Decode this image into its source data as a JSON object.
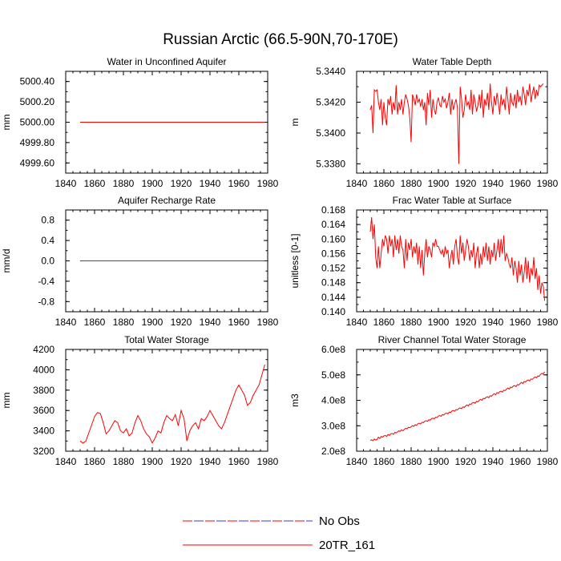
{
  "figure": {
    "title": "Russian Arctic (66.5-90N,70-170E)"
  },
  "legend": [
    {
      "label": "No Obs",
      "color": "#ff0000",
      "color2": "#3333ff",
      "style": "dashed"
    },
    {
      "label": "20TR_161",
      "color": "#ff0000",
      "style": "solid"
    }
  ],
  "chart_data": [
    {
      "type": "line",
      "title": "Water in Unconfined Aquifer",
      "ylabel": "mm",
      "xlim": [
        1840,
        1980
      ],
      "ylim": [
        4999.5,
        5000.5
      ],
      "xticks": [
        1840,
        1860,
        1880,
        1900,
        1920,
        1940,
        1960,
        1980
      ],
      "xtick_labels": [
        "1840",
        "1860",
        "1880",
        "1900",
        "1920",
        "1940",
        "1960",
        "1980"
      ],
      "yticks": [
        4999.6,
        4999.8,
        5000.0,
        5000.2,
        5000.4
      ],
      "ytick_labels": [
        "4999.60",
        "4999.80",
        "5000.00",
        "5000.20",
        "5000.40"
      ],
      "series": [
        {
          "name": "20TR_161",
          "color": "#ff0000",
          "x": [
            1850,
            1978
          ],
          "y": [
            5000.0,
            5000.0
          ]
        }
      ]
    },
    {
      "type": "line",
      "title": "Water Table Depth",
      "ylabel": "m",
      "xlim": [
        1840,
        1980
      ],
      "ylim": [
        5.3374,
        5.344
      ],
      "xticks": [
        1840,
        1860,
        1880,
        1900,
        1920,
        1940,
        1960,
        1980
      ],
      "xtick_labels": [
        "1840",
        "1860",
        "1880",
        "1900",
        "1920",
        "1940",
        "1960",
        "1980"
      ],
      "yticks": [
        5.338,
        5.34,
        5.342,
        5.344
      ],
      "ytick_labels": [
        "5.3380",
        "5.3400",
        "5.3420",
        "5.3440"
      ],
      "series": [
        {
          "name": "20TR_161",
          "color": "#ff0000",
          "x_start": 1850,
          "x_step": 1,
          "y": [
            5.3415,
            5.3418,
            5.34,
            5.3428,
            5.3427,
            5.3428,
            5.342,
            5.3415,
            5.3422,
            5.3405,
            5.342,
            5.341,
            5.3405,
            5.3422,
            5.3418,
            5.3424,
            5.3412,
            5.342,
            5.3415,
            5.3431,
            5.3412,
            5.342,
            5.3415,
            5.3422,
            5.3412,
            5.342,
            5.3425,
            5.3422,
            5.3418,
            5.341,
            5.3394,
            5.3425,
            5.3422,
            5.3418,
            5.3425,
            5.342,
            5.3422,
            5.3417,
            5.3422,
            5.3415,
            5.342,
            5.3405,
            5.3426,
            5.3418,
            5.3428,
            5.341,
            5.3422,
            5.3415,
            5.3412,
            5.342,
            5.3423,
            5.3418,
            5.3417,
            5.3424,
            5.342,
            5.3422,
            5.3416,
            5.342,
            5.3426,
            5.3412,
            5.3422,
            5.3415,
            5.3419,
            5.3422,
            5.3416,
            5.338,
            5.343,
            5.3422,
            5.341,
            5.3415,
            5.3425,
            5.3418,
            5.342,
            5.3415,
            5.3428,
            5.3412,
            5.3425,
            5.342,
            5.3414,
            5.3418,
            5.3425,
            5.3416,
            5.3428,
            5.341,
            5.3422,
            5.3418,
            5.3426,
            5.3415,
            5.3432,
            5.342,
            5.3412,
            5.3424,
            5.3418,
            5.3426,
            5.342,
            5.3412,
            5.3425,
            5.3418,
            5.3422,
            5.3415,
            5.343,
            5.3422,
            5.3412,
            5.3426,
            5.342,
            5.3418,
            5.3425,
            5.3416,
            5.3428,
            5.342,
            5.3424,
            5.3418,
            5.343,
            5.3425,
            5.3418,
            5.3428,
            5.3424,
            5.3432,
            5.342,
            5.3426,
            5.343,
            5.3422,
            5.3428,
            5.3424,
            5.3431,
            5.343,
            5.3431,
            5.3432
          ]
        }
      ]
    },
    {
      "type": "line",
      "title": "Aquifer Recharge Rate",
      "ylabel": "mm/d",
      "xlim": [
        1840,
        1980
      ],
      "ylim": [
        -1.0,
        1.0
      ],
      "xticks": [
        1840,
        1860,
        1880,
        1900,
        1920,
        1940,
        1960,
        1980
      ],
      "xtick_labels": [
        "1840",
        "1860",
        "1880",
        "1900",
        "1920",
        "1940",
        "1960",
        "1980"
      ],
      "yticks": [
        -0.8,
        -0.4,
        0.0,
        0.4,
        0.8
      ],
      "ytick_labels": [
        "-0.8",
        "-0.4",
        "0.0",
        "0.4",
        "0.8"
      ],
      "series": [
        {
          "name": "20TR_161",
          "color": "#ff0000",
          "x": [
            1850,
            1978
          ],
          "y": [
            0.0,
            0.0
          ]
        }
      ]
    },
    {
      "type": "line",
      "title": "Frac Water Table at Surface",
      "ylabel": "unitless [0-1]",
      "xlim": [
        1840,
        1980
      ],
      "ylim": [
        0.14,
        0.168
      ],
      "xticks": [
        1840,
        1860,
        1880,
        1900,
        1920,
        1940,
        1960,
        1980
      ],
      "xtick_labels": [
        "1840",
        "1860",
        "1880",
        "1900",
        "1920",
        "1940",
        "1960",
        "1980"
      ],
      "yticks": [
        0.14,
        0.144,
        0.148,
        0.152,
        0.156,
        0.16,
        0.164,
        0.168
      ],
      "ytick_labels": [
        "0.140",
        "0.144",
        "0.148",
        "0.152",
        "0.156",
        "0.160",
        "0.164",
        "0.168"
      ],
      "series": [
        {
          "name": "20TR_161",
          "color": "#ff0000",
          "x_start": 1850,
          "x_step": 1,
          "y": [
            0.162,
            0.166,
            0.16,
            0.164,
            0.155,
            0.152,
            0.158,
            0.152,
            0.156,
            0.16,
            0.158,
            0.161,
            0.16,
            0.156,
            0.161,
            0.158,
            0.16,
            0.155,
            0.161,
            0.157,
            0.16,
            0.156,
            0.161,
            0.158,
            0.157,
            0.152,
            0.16,
            0.154,
            0.159,
            0.157,
            0.16,
            0.155,
            0.158,
            0.156,
            0.159,
            0.153,
            0.158,
            0.152,
            0.157,
            0.15,
            0.156,
            0.16,
            0.155,
            0.158,
            0.157,
            0.155,
            0.159,
            0.158,
            0.16,
            0.158,
            0.158,
            0.157,
            0.156,
            0.157,
            0.155,
            0.158,
            0.156,
            0.157,
            0.152,
            0.155,
            0.157,
            0.153,
            0.158,
            0.16,
            0.155,
            0.153,
            0.161,
            0.156,
            0.159,
            0.154,
            0.157,
            0.16,
            0.158,
            0.154,
            0.157,
            0.155,
            0.159,
            0.152,
            0.156,
            0.158,
            0.152,
            0.156,
            0.153,
            0.158,
            0.155,
            0.159,
            0.154,
            0.158,
            0.153,
            0.157,
            0.155,
            0.159,
            0.154,
            0.157,
            0.16,
            0.155,
            0.16,
            0.156,
            0.161,
            0.154,
            0.156,
            0.155,
            0.153,
            0.152,
            0.155,
            0.15,
            0.154,
            0.152,
            0.148,
            0.154,
            0.15,
            0.153,
            0.148,
            0.151,
            0.155,
            0.149,
            0.154,
            0.148,
            0.152,
            0.15,
            0.155,
            0.149,
            0.152,
            0.146,
            0.15,
            0.145,
            0.148,
            0.147,
            0.143
          ]
        }
      ]
    },
    {
      "type": "line",
      "title": "Total Water Storage",
      "ylabel": "mm",
      "xlim": [
        1840,
        1980
      ],
      "ylim": [
        3200,
        4200
      ],
      "xticks": [
        1840,
        1860,
        1880,
        1900,
        1920,
        1940,
        1960,
        1980
      ],
      "xtick_labels": [
        "1840",
        "1860",
        "1880",
        "1900",
        "1920",
        "1940",
        "1960",
        "1980"
      ],
      "yticks": [
        3200,
        3400,
        3600,
        3800,
        4000,
        4200
      ],
      "ytick_labels": [
        "3200",
        "3400",
        "3600",
        "3800",
        "4000",
        "4200"
      ],
      "series": [
        {
          "name": "20TR_161",
          "color": "#ff0000",
          "x": [
            1850,
            1852,
            1854,
            1856,
            1858,
            1860,
            1862,
            1864,
            1866,
            1868,
            1870,
            1872,
            1874,
            1876,
            1878,
            1880,
            1882,
            1884,
            1886,
            1888,
            1890,
            1892,
            1894,
            1896,
            1898,
            1900,
            1902,
            1904,
            1906,
            1908,
            1910,
            1912,
            1914,
            1916,
            1918,
            1920,
            1922,
            1924,
            1926,
            1928,
            1930,
            1932,
            1934,
            1936,
            1938,
            1940,
            1942,
            1944,
            1946,
            1948,
            1950,
            1952,
            1954,
            1956,
            1958,
            1960,
            1962,
            1964,
            1966,
            1968,
            1970,
            1972,
            1974,
            1976,
            1978
          ],
          "y": [
            3300,
            3280,
            3300,
            3380,
            3460,
            3540,
            3580,
            3570,
            3480,
            3370,
            3400,
            3450,
            3500,
            3480,
            3400,
            3380,
            3420,
            3350,
            3380,
            3480,
            3550,
            3500,
            3420,
            3370,
            3340,
            3280,
            3330,
            3400,
            3380,
            3480,
            3550,
            3520,
            3500,
            3560,
            3450,
            3600,
            3520,
            3300,
            3400,
            3450,
            3480,
            3420,
            3520,
            3500,
            3540,
            3600,
            3550,
            3500,
            3450,
            3420,
            3480,
            3560,
            3640,
            3720,
            3800,
            3850,
            3800,
            3750,
            3650,
            3680,
            3750,
            3800,
            3850,
            3950,
            4050
          ]
        }
      ]
    },
    {
      "type": "line",
      "title": "River Channel Total Water Storage",
      "ylabel": "m3",
      "xlim": [
        1840,
        1980
      ],
      "ylim": [
        200000000.0,
        600000000.0
      ],
      "xticks": [
        1840,
        1860,
        1880,
        1900,
        1920,
        1940,
        1960,
        1980
      ],
      "xtick_labels": [
        "1840",
        "1860",
        "1880",
        "1900",
        "1920",
        "1940",
        "1960",
        "1980"
      ],
      "yticks": [
        200000000.0,
        300000000.0,
        400000000.0,
        500000000.0,
        600000000.0
      ],
      "ytick_labels": [
        "2.0e8",
        "3.0e8",
        "4.0e8",
        "5.0e8",
        "6.0e8"
      ],
      "series": [
        {
          "name": "20TR_161",
          "color": "#ff0000",
          "x_start": 1850,
          "x_step": 1,
          "y": [
            242000000.0,
            245000000.0,
            241000000.0,
            248000000.0,
            244000000.0,
            246000000.0,
            255000000.0,
            250000000.0,
            258000000.0,
            255000000.0,
            260000000.0,
            262000000.0,
            258000000.0,
            266000000.0,
            262000000.0,
            268000000.0,
            270000000.0,
            266000000.0,
            274000000.0,
            272000000.0,
            276000000.0,
            280000000.0,
            278000000.0,
            284000000.0,
            280000000.0,
            286000000.0,
            290000000.0,
            288000000.0,
            294000000.0,
            292000000.0,
            296000000.0,
            300000000.0,
            298000000.0,
            304000000.0,
            302000000.0,
            308000000.0,
            310000000.0,
            307000000.0,
            314000000.0,
            312000000.0,
            318000000.0,
            320000000.0,
            317000000.0,
            324000000.0,
            322000000.0,
            328000000.0,
            330000000.0,
            327000000.0,
            334000000.0,
            332000000.0,
            338000000.0,
            340000000.0,
            337000000.0,
            344000000.0,
            342000000.0,
            348000000.0,
            350000000.0,
            347000000.0,
            354000000.0,
            352000000.0,
            358000000.0,
            360000000.0,
            357000000.0,
            364000000.0,
            362000000.0,
            368000000.0,
            370000000.0,
            367000000.0,
            374000000.0,
            372000000.0,
            378000000.0,
            382000000.0,
            378000000.0,
            386000000.0,
            384000000.0,
            390000000.0,
            392000000.0,
            388000000.0,
            396000000.0,
            394000000.0,
            400000000.0,
            404000000.0,
            400000000.0,
            408000000.0,
            406000000.0,
            412000000.0,
            414000000.0,
            410000000.0,
            418000000.0,
            416000000.0,
            422000000.0,
            426000000.0,
            422000000.0,
            430000000.0,
            428000000.0,
            434000000.0,
            436000000.0,
            432000000.0,
            440000000.0,
            438000000.0,
            444000000.0,
            448000000.0,
            444000000.0,
            452000000.0,
            450000000.0,
            456000000.0,
            458000000.0,
            454000000.0,
            462000000.0,
            460000000.0,
            466000000.0,
            470000000.0,
            466000000.0,
            474000000.0,
            472000000.0,
            478000000.0,
            480000000.0,
            476000000.0,
            484000000.0,
            482000000.0,
            488000000.0,
            492000000.0,
            488000000.0,
            496000000.0,
            494000000.0,
            502000000.0,
            506000000.0,
            504000000.0,
            512000000.0
          ]
        }
      ]
    }
  ]
}
